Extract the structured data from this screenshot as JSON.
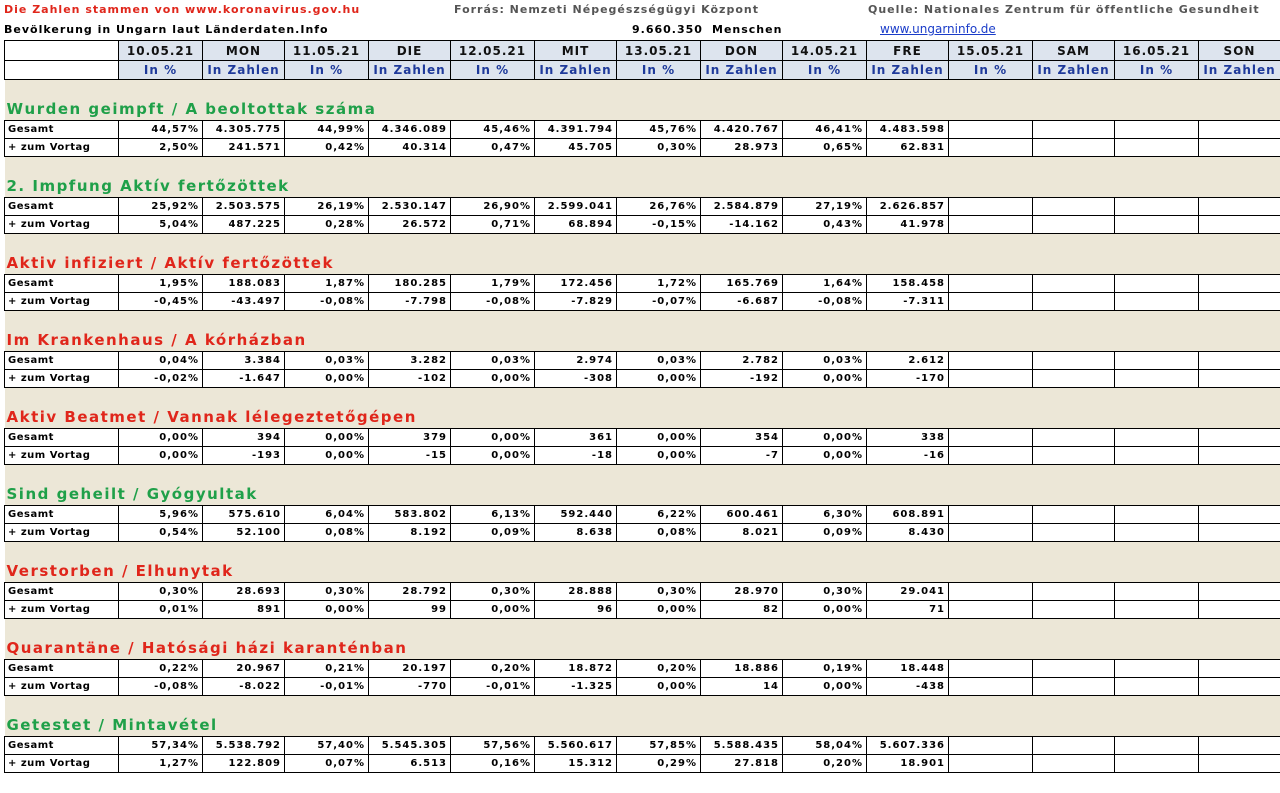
{
  "header": {
    "source_left": "Die Zahlen stammen von www.koronavirus.gov.hu",
    "source_center": "Forrás: Nemzeti Népegészségügyi Központ",
    "source_right": "Quelle: Nationales Zentrum für öffentliche Gesundheit",
    "population_label": "Bevölkerung in Ungarn laut Länderdaten.Info",
    "population_value": "9.660.350",
    "population_unit": "Menschen",
    "website": "www.ungarninfo.de"
  },
  "columns": [
    {
      "top": "10.05.21",
      "sub": "In %"
    },
    {
      "top": "MON",
      "sub": "In Zahlen"
    },
    {
      "top": "11.05.21",
      "sub": "In %"
    },
    {
      "top": "DIE",
      "sub": "In Zahlen"
    },
    {
      "top": "12.05.21",
      "sub": "In %"
    },
    {
      "top": "MIT",
      "sub": "In Zahlen"
    },
    {
      "top": "13.05.21",
      "sub": "In %"
    },
    {
      "top": "DON",
      "sub": "In Zahlen"
    },
    {
      "top": "14.05.21",
      "sub": "In %"
    },
    {
      "top": "FRE",
      "sub": "In Zahlen"
    },
    {
      "top": "15.05.21",
      "sub": "In %"
    },
    {
      "top": "SAM",
      "sub": "In Zahlen"
    },
    {
      "top": "16.05.21",
      "sub": "In %"
    },
    {
      "top": "SON",
      "sub": "In Zahlen"
    }
  ],
  "row_labels": {
    "total": "Gesamt",
    "delta": "+ zum Vortag"
  },
  "sections": [
    {
      "title": "Wurden geimpft /  A beoltottak száma",
      "color": "#1fa049",
      "total": [
        "44,57%",
        "4.305.775",
        "44,99%",
        "4.346.089",
        "45,46%",
        "4.391.794",
        "45,76%",
        "4.420.767",
        "46,41%",
        "4.483.598"
      ],
      "delta": [
        "2,50%",
        "241.571",
        "0,42%",
        "40.314",
        "0,47%",
        "45.705",
        "0,30%",
        "28.973",
        "0,65%",
        "62.831"
      ]
    },
    {
      "title": "2. Impfung  Aktív fertőzöttek",
      "color": "#1fa049",
      "total": [
        "25,92%",
        "2.503.575",
        "26,19%",
        "2.530.147",
        "26,90%",
        "2.599.041",
        "26,76%",
        "2.584.879",
        "27,19%",
        "2.626.857"
      ],
      "delta": [
        "5,04%",
        "487.225",
        "0,28%",
        "26.572",
        "0,71%",
        "68.894",
        "-0,15%",
        "-14.162",
        "0,43%",
        "41.978"
      ]
    },
    {
      "title": "Aktiv infiziert /  Aktív fertőzöttek",
      "color": "#e0261b",
      "total": [
        "1,95%",
        "188.083",
        "1,87%",
        "180.285",
        "1,79%",
        "172.456",
        "1,72%",
        "165.769",
        "1,64%",
        "158.458"
      ],
      "delta": [
        "-0,45%",
        "-43.497",
        "-0,08%",
        "-7.798",
        "-0,08%",
        "-7.829",
        "-0,07%",
        "-6.687",
        "-0,08%",
        "-7.311"
      ]
    },
    {
      "title": "Im  Krankenhaus /  A kórházban",
      "color": "#e0261b",
      "total": [
        "0,04%",
        "3.384",
        "0,03%",
        "3.282",
        "0,03%",
        "2.974",
        "0,03%",
        "2.782",
        "0,03%",
        "2.612"
      ],
      "delta": [
        "-0,02%",
        "-1.647",
        "0,00%",
        "-102",
        "0,00%",
        "-308",
        "0,00%",
        "-192",
        "0,00%",
        "-170"
      ]
    },
    {
      "title": "Aktiv Beatmet /  Vannak lélegeztetőgépen",
      "color": "#e0261b",
      "total": [
        "0,00%",
        "394",
        "0,00%",
        "379",
        "0,00%",
        "361",
        "0,00%",
        "354",
        "0,00%",
        "338"
      ],
      "delta": [
        "0,00%",
        "-193",
        "0,00%",
        "-15",
        "0,00%",
        "-18",
        "0,00%",
        "-7",
        "0,00%",
        "-16"
      ]
    },
    {
      "title": "Sind geheilt /  Gyógyultak",
      "color": "#1fa049",
      "total": [
        "5,96%",
        "575.610",
        "6,04%",
        "583.802",
        "6,13%",
        "592.440",
        "6,22%",
        "600.461",
        "6,30%",
        "608.891"
      ],
      "delta": [
        "0,54%",
        "52.100",
        "0,08%",
        "8.192",
        "0,09%",
        "8.638",
        "0,08%",
        "8.021",
        "0,09%",
        "8.430"
      ]
    },
    {
      "title": "Verstorben /  Elhunytak",
      "color": "#e0261b",
      "total": [
        "0,30%",
        "28.693",
        "0,30%",
        "28.792",
        "0,30%",
        "28.888",
        "0,30%",
        "28.970",
        "0,30%",
        "29.041"
      ],
      "delta": [
        "0,01%",
        "891",
        "0,00%",
        "99",
        "0,00%",
        "96",
        "0,00%",
        "82",
        "0,00%",
        "71"
      ]
    },
    {
      "title": "Quarantäne /  Hatósági házi karanténban",
      "color": "#e0261b",
      "total": [
        "0,22%",
        "20.967",
        "0,21%",
        "20.197",
        "0,20%",
        "18.872",
        "0,20%",
        "18.886",
        "0,19%",
        "18.448"
      ],
      "delta": [
        "-0,08%",
        "-8.022",
        "-0,01%",
        "-770",
        "-0,01%",
        "-1.325",
        "0,00%",
        "14",
        "0,00%",
        "-438"
      ]
    },
    {
      "title": "Getestet /  Mintavétel",
      "color": "#1fa049",
      "total": [
        "57,34%",
        "5.538.792",
        "57,40%",
        "5.545.305",
        "57,56%",
        "5.560.617",
        "57,85%",
        "5.588.435",
        "58,04%",
        "5.607.336"
      ],
      "delta": [
        "1,27%",
        "122.809",
        "0,07%",
        "6.513",
        "0,16%",
        "15.312",
        "0,29%",
        "27.818",
        "0,20%",
        "18.901"
      ]
    }
  ]
}
